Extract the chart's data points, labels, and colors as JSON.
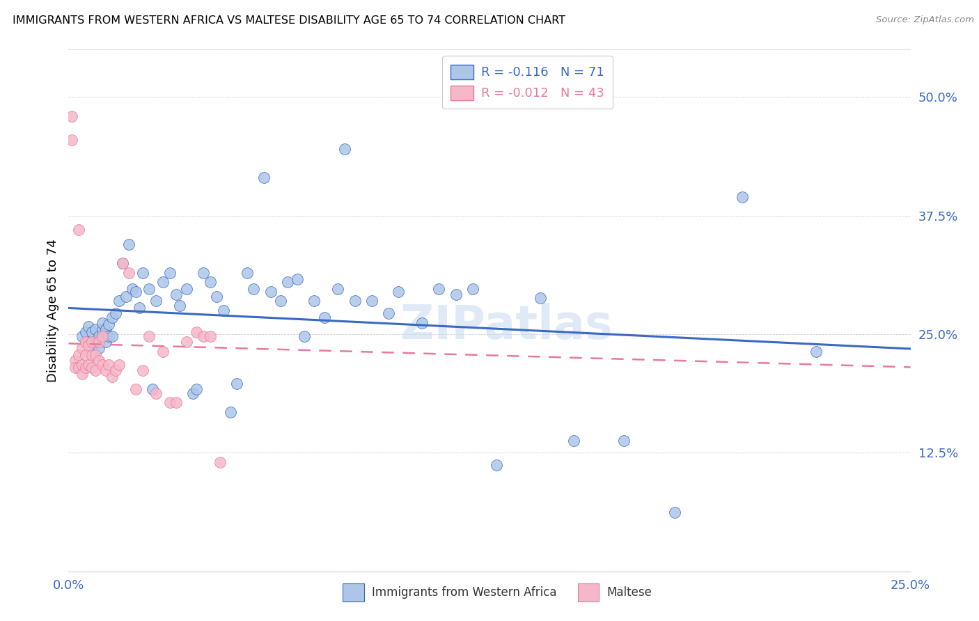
{
  "title": "IMMIGRANTS FROM WESTERN AFRICA VS MALTESE DISABILITY AGE 65 TO 74 CORRELATION CHART",
  "source": "Source: ZipAtlas.com",
  "ylabel_label": "Disability Age 65 to 74",
  "legend_label1": "Immigrants from Western Africa",
  "legend_label2": "Maltese",
  "R1": -0.116,
  "N1": 71,
  "R2": -0.012,
  "N2": 43,
  "color1": "#adc6e8",
  "color2": "#f5b8c8",
  "line_color1": "#3a68c4",
  "line_color2": "#e8799a",
  "xmin": 0.0,
  "xmax": 0.25,
  "ymin": 0.0,
  "ymax": 0.55,
  "yticks": [
    0.0,
    0.125,
    0.25,
    0.375,
    0.5
  ],
  "ytick_labels": [
    "",
    "12.5%",
    "25.0%",
    "37.5%",
    "50.0%"
  ],
  "xticks": [
    0.0,
    0.05,
    0.1,
    0.15,
    0.2,
    0.25
  ],
  "xtick_labels": [
    "0.0%",
    "",
    "",
    "",
    "",
    "25.0%"
  ],
  "blue_x": [
    0.004,
    0.005,
    0.006,
    0.006,
    0.007,
    0.007,
    0.008,
    0.008,
    0.009,
    0.009,
    0.01,
    0.01,
    0.01,
    0.011,
    0.011,
    0.012,
    0.012,
    0.013,
    0.013,
    0.014,
    0.015,
    0.016,
    0.017,
    0.018,
    0.019,
    0.02,
    0.021,
    0.022,
    0.024,
    0.025,
    0.026,
    0.028,
    0.03,
    0.032,
    0.033,
    0.035,
    0.037,
    0.038,
    0.04,
    0.042,
    0.044,
    0.046,
    0.048,
    0.05,
    0.053,
    0.055,
    0.058,
    0.06,
    0.063,
    0.065,
    0.068,
    0.07,
    0.073,
    0.076,
    0.08,
    0.082,
    0.085,
    0.09,
    0.095,
    0.098,
    0.105,
    0.11,
    0.115,
    0.12,
    0.127,
    0.14,
    0.15,
    0.165,
    0.18,
    0.2,
    0.222
  ],
  "blue_y": [
    0.248,
    0.252,
    0.242,
    0.258,
    0.238,
    0.252,
    0.242,
    0.255,
    0.235,
    0.248,
    0.248,
    0.255,
    0.262,
    0.242,
    0.255,
    0.248,
    0.26,
    0.268,
    0.248,
    0.272,
    0.285,
    0.325,
    0.29,
    0.345,
    0.298,
    0.295,
    0.278,
    0.315,
    0.298,
    0.192,
    0.285,
    0.305,
    0.315,
    0.292,
    0.28,
    0.298,
    0.188,
    0.192,
    0.315,
    0.305,
    0.29,
    0.275,
    0.168,
    0.198,
    0.315,
    0.298,
    0.415,
    0.295,
    0.285,
    0.305,
    0.308,
    0.248,
    0.285,
    0.268,
    0.298,
    0.445,
    0.285,
    0.285,
    0.272,
    0.295,
    0.262,
    0.298,
    0.292,
    0.298,
    0.112,
    0.288,
    0.138,
    0.138,
    0.062,
    0.395,
    0.232
  ],
  "pink_x": [
    0.001,
    0.001,
    0.002,
    0.002,
    0.003,
    0.003,
    0.003,
    0.004,
    0.004,
    0.004,
    0.005,
    0.005,
    0.005,
    0.006,
    0.006,
    0.007,
    0.007,
    0.007,
    0.008,
    0.008,
    0.009,
    0.009,
    0.01,
    0.01,
    0.011,
    0.012,
    0.013,
    0.014,
    0.015,
    0.016,
    0.018,
    0.02,
    0.022,
    0.024,
    0.026,
    0.028,
    0.03,
    0.032,
    0.035,
    0.038,
    0.04,
    0.042,
    0.045
  ],
  "pink_y": [
    0.48,
    0.455,
    0.222,
    0.215,
    0.36,
    0.228,
    0.215,
    0.235,
    0.218,
    0.208,
    0.242,
    0.228,
    0.215,
    0.238,
    0.218,
    0.242,
    0.228,
    0.215,
    0.228,
    0.212,
    0.242,
    0.222,
    0.218,
    0.248,
    0.212,
    0.218,
    0.205,
    0.212,
    0.218,
    0.325,
    0.315,
    0.192,
    0.212,
    0.248,
    0.188,
    0.232,
    0.178,
    0.178,
    0.242,
    0.252,
    0.248,
    0.248,
    0.115
  ]
}
